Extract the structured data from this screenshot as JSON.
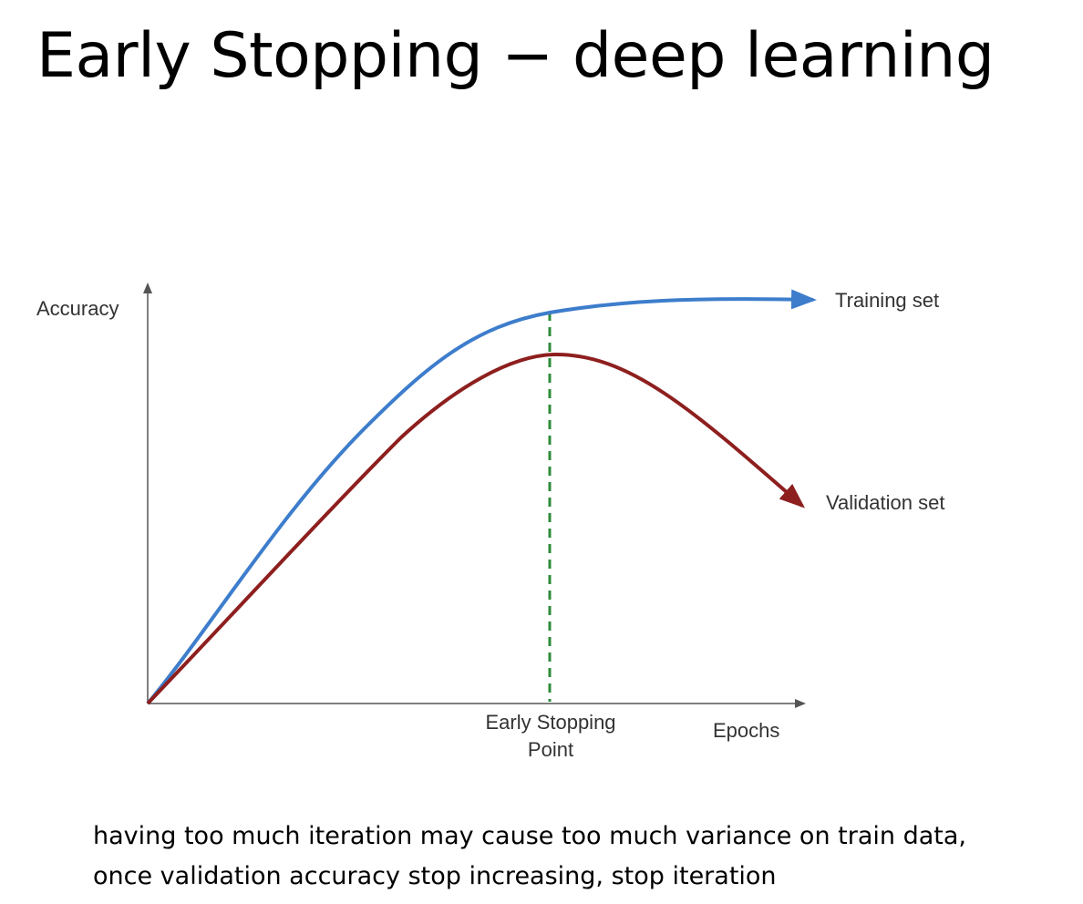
{
  "slide": {
    "title": "Early Stopping − deep learning",
    "caption_lines": [
      "having too much iteration may cause too much variance on train data,",
      "once validation accuracy stop increasing, stop iteration"
    ]
  },
  "diagram": {
    "y_axis_label": "Accuracy",
    "x_axis_label": "Epochs",
    "marker_label_lines": [
      "Early Stopping",
      "Point"
    ],
    "curves": [
      {
        "label": "Training set",
        "color": "#3d7dcc"
      },
      {
        "label": "Validation set",
        "color": "#8e1f1f"
      }
    ],
    "marker_color": "#2e8b3a",
    "axis_color": "#555555"
  }
}
